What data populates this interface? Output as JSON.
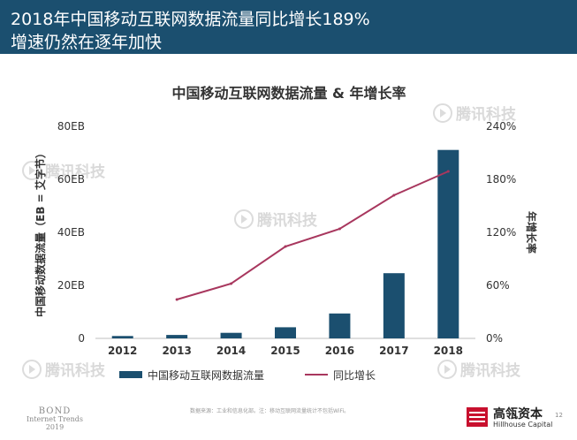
{
  "header": {
    "title_line1": "2018年中国移动互联网数据流量同比增长189%",
    "title_line2": "增速仍然在逐年加快"
  },
  "watermark": {
    "text": "腾讯科技"
  },
  "footer": {
    "bond_line1": "BOND",
    "bond_line2": "Internet Trends",
    "bond_line3": "2019",
    "source": "数据来源：工业和信息化部。注：移动互联网流量统计不包括WiFi。",
    "logo_cn": "高瓴资本",
    "logo_en": "Hillhouse Capital",
    "page_number": "12"
  },
  "colors": {
    "header_bg": "#1b4f6f",
    "bar": "#1b4f6f",
    "line": "#a8375e"
  },
  "chart_data": {
    "type": "bar",
    "title": "中国移动互联网数据流量 & 年增长率",
    "categories": [
      "2012",
      "2013",
      "2014",
      "2015",
      "2016",
      "2017",
      "2018"
    ],
    "series": [
      {
        "name": "中国移动互联网数据流量",
        "type": "bar",
        "axis": "left",
        "values": [
          0.9,
          1.3,
          2.1,
          4.2,
          9.4,
          24.6,
          71.1
        ]
      },
      {
        "name": "同比增长",
        "type": "line",
        "axis": "right",
        "values": [
          null,
          44,
          62,
          104,
          124,
          162,
          189
        ]
      }
    ],
    "ylabel": "中国移动数据流量（EB = 艾字节）",
    "y2label": "年增长率",
    "ylim": [
      0,
      80
    ],
    "y2lim": [
      0,
      240
    ],
    "yticks": [
      "0",
      "20EB",
      "40EB",
      "60EB",
      "80EB"
    ],
    "y2ticks": [
      "0%",
      "60%",
      "120%",
      "180%",
      "240%"
    ],
    "grid": false,
    "legend_position": "bottom"
  }
}
